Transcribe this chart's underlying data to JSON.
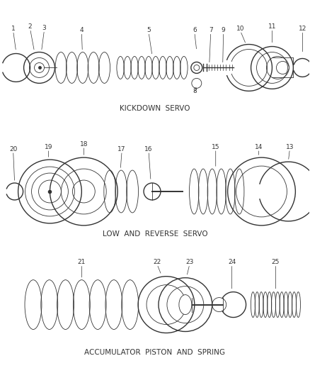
{
  "background_color": "#ffffff",
  "line_color": "#333333",
  "gray_color": "#888888",
  "section_labels": [
    "KICKDOWN  SERVO",
    "LOW  AND  REVERSE  SERVO",
    "ACCUMULATOR  PISTON  AND  SPRING"
  ],
  "font_size_labels": 6.5,
  "font_size_section": 7.5
}
